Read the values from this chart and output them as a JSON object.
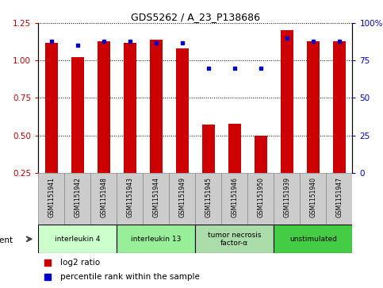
{
  "title": "GDS5262 / A_23_P138686",
  "samples": [
    "GSM1151941",
    "GSM1151942",
    "GSM1151948",
    "GSM1151943",
    "GSM1151944",
    "GSM1151949",
    "GSM1151945",
    "GSM1151946",
    "GSM1151950",
    "GSM1151939",
    "GSM1151940",
    "GSM1151947"
  ],
  "log2_ratio": [
    1.12,
    1.02,
    1.13,
    1.12,
    1.14,
    1.08,
    0.57,
    0.58,
    0.5,
    1.2,
    1.13,
    1.13
  ],
  "percentile_rank": [
    88,
    85,
    88,
    88,
    87,
    87,
    70,
    70,
    70,
    90,
    88,
    88
  ],
  "bar_color": "#cc0000",
  "dot_color": "#0000cc",
  "ylim_left": [
    0.25,
    1.25
  ],
  "ylim_right": [
    0,
    100
  ],
  "yticks_left": [
    0.25,
    0.5,
    0.75,
    1.0,
    1.25
  ],
  "yticks_right": [
    0,
    25,
    50,
    75,
    100
  ],
  "ytick_labels_right": [
    "0",
    "25",
    "50",
    "75",
    "100%"
  ],
  "groups": [
    {
      "label": "interleukin 4",
      "indices": [
        0,
        1,
        2
      ],
      "color": "#ccffcc"
    },
    {
      "label": "interleukin 13",
      "indices": [
        3,
        4,
        5
      ],
      "color": "#99ee99"
    },
    {
      "label": "tumor necrosis\nfactor-α",
      "indices": [
        6,
        7,
        8
      ],
      "color": "#aaddaa"
    },
    {
      "label": "unstimulated",
      "indices": [
        9,
        10,
        11
      ],
      "color": "#44cc44"
    }
  ],
  "agent_label": "agent",
  "legend_bar_label": "log2 ratio",
  "legend_dot_label": "percentile rank within the sample",
  "grid_color": "#000000",
  "bar_width": 0.5,
  "plot_bg": "#ffffff",
  "axis_bg": "#ffffff",
  "tick_color_left": "#cc0000",
  "tick_color_right": "#0000cc",
  "sample_box_color": "#cccccc",
  "group_border_color": "#000000",
  "bar_baseline": 0.25,
  "fig_width": 4.83,
  "fig_height": 3.63,
  "dpi": 100
}
